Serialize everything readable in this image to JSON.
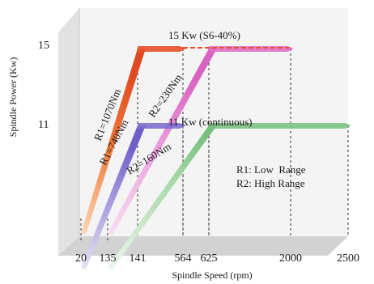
{
  "chart_data": {
    "type": "area",
    "xlabel": "Spindle Speed (rpm)",
    "ylabel": "Spindle Power (Kw)",
    "x_ticks": [
      20,
      135,
      141,
      564,
      625,
      2000,
      2500
    ],
    "y_ticks": [
      11,
      15
    ],
    "axis_style": "3d-floor",
    "grid": false,
    "legend_position": "right-middle",
    "legend": [
      "R1: Low  Range",
      "R2: High Range"
    ],
    "annotations": [
      {
        "text": "15 Kw (S6-40%)",
        "y": 15
      },
      {
        "text": "11 Kw (continuous)",
        "y": 11
      }
    ],
    "series": [
      {
        "name": "R1=1070Nm",
        "color": "#e8502a",
        "points": [
          [
            20,
            5.4
          ],
          [
            141,
            15
          ],
          [
            564,
            15
          ]
        ]
      },
      {
        "name": "R1=740Nm",
        "color": "#7f6fd0",
        "points": [
          [
            20,
            3.6
          ],
          [
            141,
            11
          ],
          [
            564,
            11
          ]
        ]
      },
      {
        "name": "R2=230Nm",
        "color": "#e06fc8",
        "points": [
          [
            135,
            5.4
          ],
          [
            625,
            15
          ],
          [
            2000,
            15
          ]
        ]
      },
      {
        "name": "R2=160Nm",
        "color": "#7cc282",
        "points": [
          [
            135,
            3.6
          ],
          [
            625,
            11
          ],
          [
            2500,
            11
          ]
        ]
      }
    ]
  }
}
